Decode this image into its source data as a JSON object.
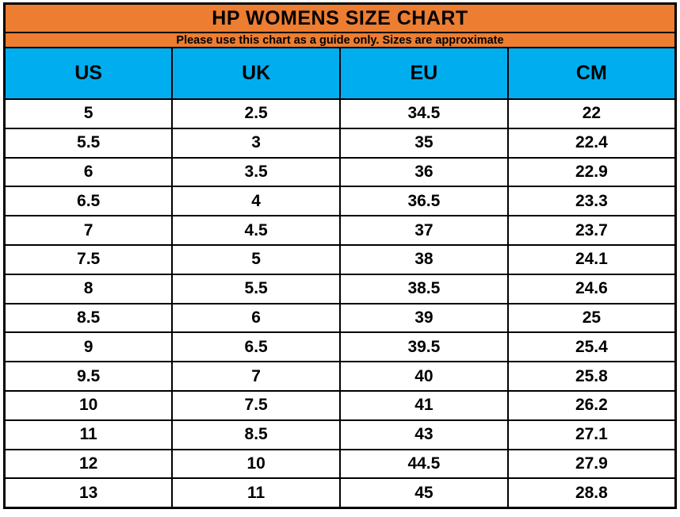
{
  "title": "HP WOMENS SIZE CHART",
  "subtitle": "Please use this chart as a guide only. Sizes are approximate",
  "colors": {
    "header_orange": "#ED7D31",
    "header_blue": "#00AEEF",
    "border": "#000000",
    "text": "#000000"
  },
  "chart_data": {
    "type": "table",
    "title": "HP WOMENS SIZE CHART",
    "subtitle": "Please use this chart as a guide only. Sizes are approximate",
    "columns": [
      "US",
      "UK",
      "EU",
      "CM"
    ],
    "rows": [
      [
        "5",
        "2.5",
        "34.5",
        "22"
      ],
      [
        "5.5",
        "3",
        "35",
        "22.4"
      ],
      [
        "6",
        "3.5",
        "36",
        "22.9"
      ],
      [
        "6.5",
        "4",
        "36.5",
        "23.3"
      ],
      [
        "7",
        "4.5",
        "37",
        "23.7"
      ],
      [
        "7.5",
        "5",
        "38",
        "24.1"
      ],
      [
        "8",
        "5.5",
        "38.5",
        "24.6"
      ],
      [
        "8.5",
        "6",
        "39",
        "25"
      ],
      [
        "9",
        "6.5",
        "39.5",
        "25.4"
      ],
      [
        "9.5",
        "7",
        "40",
        "25.8"
      ],
      [
        "10",
        "7.5",
        "41",
        "26.2"
      ],
      [
        "11",
        "8.5",
        "43",
        "27.1"
      ],
      [
        "12",
        "10",
        "44.5",
        "27.9"
      ],
      [
        "13",
        "11",
        "45",
        "28.8"
      ]
    ]
  }
}
